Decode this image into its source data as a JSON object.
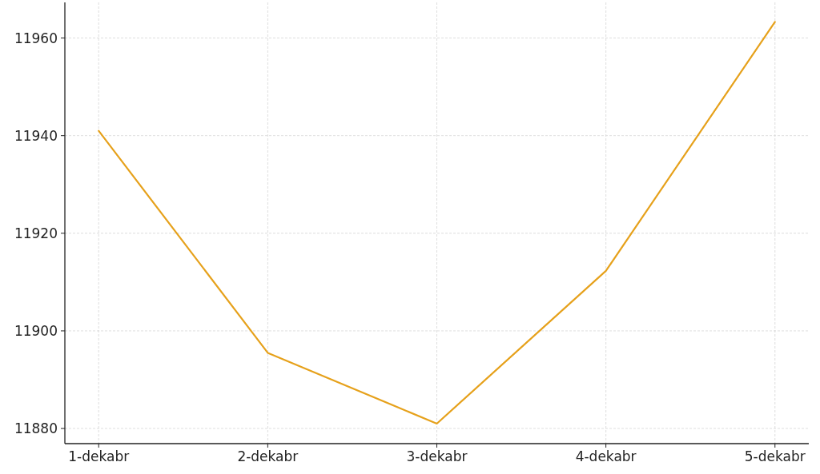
{
  "chart_data": {
    "type": "line",
    "categories": [
      "1-dekabr",
      "2-dekabr",
      "3-dekabr",
      "4-dekabr",
      "5-dekabr"
    ],
    "series": [
      {
        "color": "#e6a11b",
        "values": [
          11941.0,
          11895.5,
          11881.0,
          11912.3,
          11963.3
        ]
      }
    ],
    "ylim": [
      11876.9,
      11967.3
    ],
    "yticks": [
      11880,
      11900,
      11920,
      11940,
      11960
    ],
    "grid": true,
    "line_style": "solid"
  }
}
